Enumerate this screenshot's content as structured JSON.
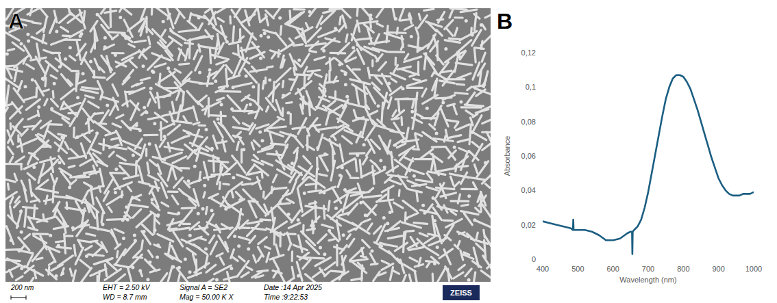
{
  "panel_a": {
    "label": "A",
    "scale_bar": "200 nm",
    "info": [
      "EHT = 2.50 kV",
      "WD = 8.7 mm",
      "Signal A = SE2",
      "Mag = 50.00 K X",
      "Date :14 Apr 2025",
      "Time :9:22:53"
    ],
    "logo": "ZEISS"
  },
  "chart_data": {
    "panel_label": "B",
    "type": "line",
    "color": "#1b5e82",
    "x_label": "Wavelength (nm)",
    "y_label": "Absorbance",
    "x": [
      400,
      420,
      440,
      460,
      480,
      486,
      487,
      488,
      500,
      520,
      540,
      560,
      580,
      600,
      620,
      640,
      650,
      654,
      655,
      656,
      660,
      670,
      680,
      690,
      700,
      710,
      720,
      730,
      740,
      750,
      760,
      770,
      780,
      790,
      800,
      810,
      820,
      830,
      840,
      850,
      860,
      870,
      880,
      890,
      900,
      910,
      920,
      930,
      940,
      950,
      960,
      970,
      980,
      990,
      1000
    ],
    "values": [
      0.022,
      0.021,
      0.02,
      0.019,
      0.018,
      0.017,
      0.023,
      0.017,
      0.017,
      0.017,
      0.016,
      0.014,
      0.011,
      0.011,
      0.012,
      0.015,
      0.016,
      0.016,
      0.003,
      0.016,
      0.017,
      0.019,
      0.023,
      0.03,
      0.039,
      0.05,
      0.061,
      0.072,
      0.083,
      0.093,
      0.1,
      0.105,
      0.107,
      0.107,
      0.106,
      0.103,
      0.099,
      0.093,
      0.087,
      0.08,
      0.073,
      0.066,
      0.059,
      0.053,
      0.047,
      0.043,
      0.04,
      0.038,
      0.037,
      0.037,
      0.037,
      0.038,
      0.038,
      0.038,
      0.039
    ],
    "xlim": [
      400,
      1000
    ],
    "xticks": [
      400,
      500,
      600,
      700,
      800,
      900,
      1000
    ],
    "ylim": [
      0,
      0.12
    ],
    "yticks": [
      0,
      {
        "value": 0.02,
        "label": "0,02"
      },
      {
        "value": 0.04,
        "label": "0,04"
      },
      {
        "value": 0.06,
        "label": "0,06"
      },
      {
        "value": 0.08,
        "label": "0,08"
      },
      {
        "value": 0.1,
        "label": "0,1"
      },
      {
        "value": 0.12,
        "label": "0,12"
      }
    ],
    "grid": false
  }
}
